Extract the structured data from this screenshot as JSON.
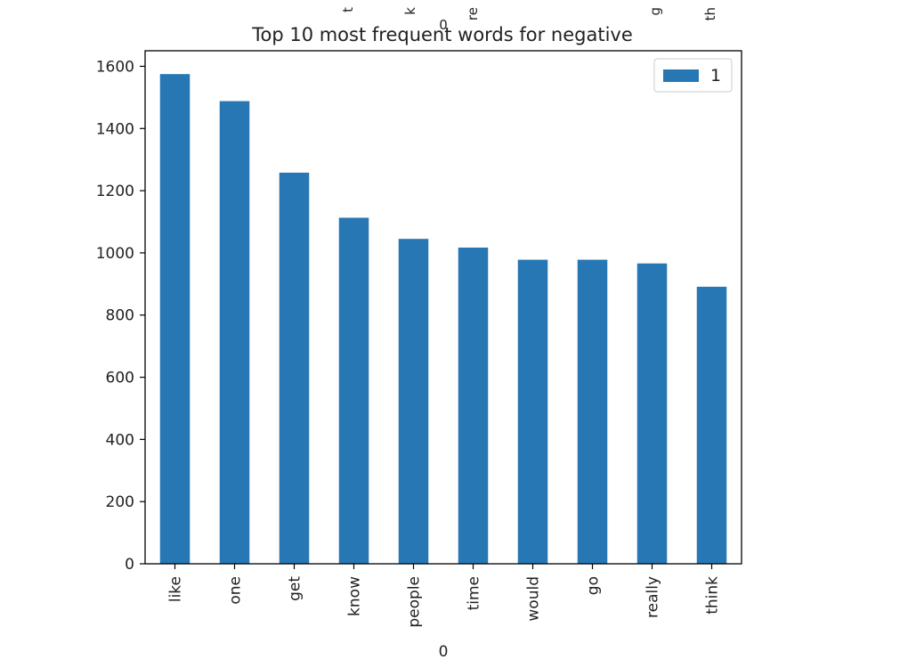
{
  "top_fragment": {
    "tick_labels": [
      "t",
      "k",
      "re",
      "g",
      "th"
    ],
    "xlabel": "0"
  },
  "chart_data": {
    "type": "bar",
    "title": "Top 10 most frequent words for negative",
    "xlabel": "0",
    "ylabel": "",
    "categories": [
      "like",
      "one",
      "get",
      "know",
      "people",
      "time",
      "would",
      "go",
      "really",
      "think"
    ],
    "series": [
      {
        "name": "1",
        "values": [
          1575,
          1488,
          1258,
          1113,
          1045,
          1017,
          978,
          978,
          966,
          891
        ]
      }
    ],
    "ylim": [
      0,
      1650
    ],
    "yticks": [
      0,
      200,
      400,
      600,
      800,
      1000,
      1200,
      1400,
      1600
    ],
    "legend": "top-right",
    "grid": false,
    "colors": {
      "bar": "#2777b4",
      "axis": "#000000",
      "text": "#222222"
    }
  }
}
